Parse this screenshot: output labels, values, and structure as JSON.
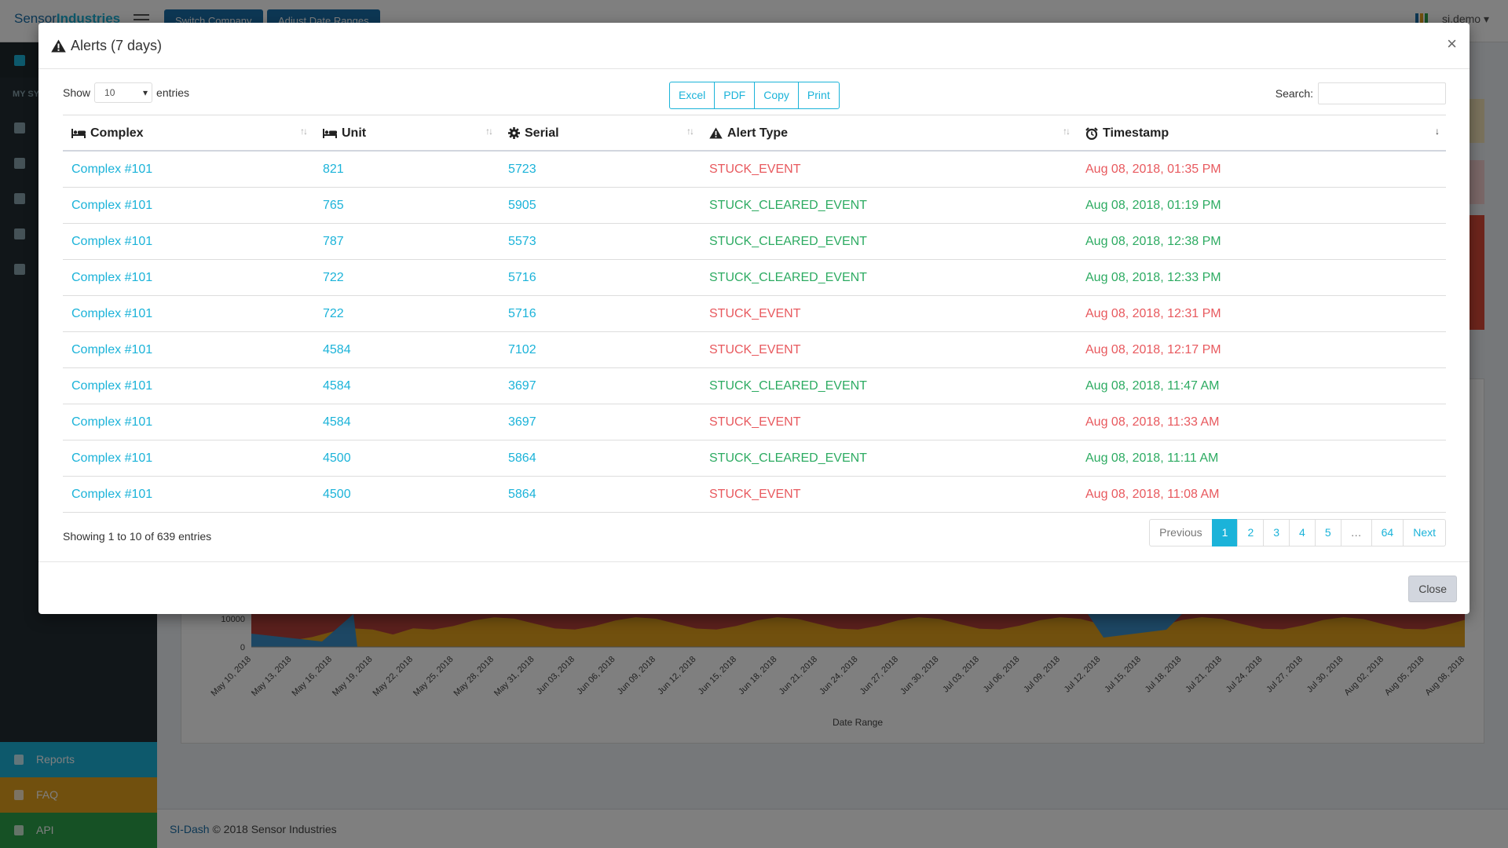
{
  "background": {
    "brand": {
      "logo_prefix": "Sensor",
      "logo_suffix": "Industries"
    },
    "topbar": {
      "switch_company": "Switch Company",
      "adjust_date_range": "Adjust Date Ranges",
      "user": "si.demo"
    },
    "sidebar": {
      "section_label": "MY SY",
      "bottom_items": [
        {
          "label": "Reports",
          "color": "#1bb3d9"
        },
        {
          "label": "FAQ",
          "color": "#e2a11d"
        },
        {
          "label": "API",
          "color": "#2da24a"
        }
      ]
    },
    "chart": {
      "xlabel": "Date Range",
      "y_ticks": [
        "10000",
        "0"
      ],
      "x_ticks": [
        "May 10, 2018",
        "May 13, 2018",
        "May 16, 2018",
        "May 19, 2018",
        "May 22, 2018",
        "May 25, 2018",
        "May 28, 2018",
        "May 31, 2018",
        "Jun 03, 2018",
        "Jun 06, 2018",
        "Jun 09, 2018",
        "Jun 12, 2018",
        "Jun 15, 2018",
        "Jun 18, 2018",
        "Jun 21, 2018",
        "Jun 24, 2018",
        "Jun 27, 2018",
        "Jun 30, 2018",
        "Jul 03, 2018",
        "Jul 06, 2018",
        "Jul 09, 2018",
        "Jul 12, 2018",
        "Jul 15, 2018",
        "Jul 18, 2018",
        "Jul 21, 2018",
        "Jul 24, 2018",
        "Jul 27, 2018",
        "Jul 30, 2018",
        "Aug 02, 2018",
        "Aug 05, 2018",
        "Aug 08, 2018"
      ]
    },
    "footer": {
      "brand": "SI-Dash",
      "text": " © 2018 Sensor Industries"
    }
  },
  "modal": {
    "title": "Alerts (7 days)",
    "close_x": "×",
    "length": {
      "show": "Show",
      "value": "10",
      "entries": "entries"
    },
    "buttons": [
      "Excel",
      "PDF",
      "Copy",
      "Print"
    ],
    "search": {
      "label": "Search:",
      "value": ""
    },
    "columns": [
      {
        "label": "Complex",
        "icon": "bed-icon"
      },
      {
        "label": "Unit",
        "icon": "bed-icon"
      },
      {
        "label": "Serial",
        "icon": "gear-icon"
      },
      {
        "label": "Alert Type",
        "icon": "warning-icon"
      },
      {
        "label": "Timestamp",
        "icon": "alarm-clock-icon"
      }
    ],
    "rows": [
      {
        "complex": "Complex #101",
        "unit": "821",
        "serial": "5723",
        "type": "STUCK_EVENT",
        "timestamp": "Aug 08, 2018, 01:35 PM",
        "status": "red"
      },
      {
        "complex": "Complex #101",
        "unit": "765",
        "serial": "5905",
        "type": "STUCK_CLEARED_EVENT",
        "timestamp": "Aug 08, 2018, 01:19 PM",
        "status": "green"
      },
      {
        "complex": "Complex #101",
        "unit": "787",
        "serial": "5573",
        "type": "STUCK_CLEARED_EVENT",
        "timestamp": "Aug 08, 2018, 12:38 PM",
        "status": "green"
      },
      {
        "complex": "Complex #101",
        "unit": "722",
        "serial": "5716",
        "type": "STUCK_CLEARED_EVENT",
        "timestamp": "Aug 08, 2018, 12:33 PM",
        "status": "green"
      },
      {
        "complex": "Complex #101",
        "unit": "722",
        "serial": "5716",
        "type": "STUCK_EVENT",
        "timestamp": "Aug 08, 2018, 12:31 PM",
        "status": "red"
      },
      {
        "complex": "Complex #101",
        "unit": "4584",
        "serial": "7102",
        "type": "STUCK_EVENT",
        "timestamp": "Aug 08, 2018, 12:17 PM",
        "status": "red"
      },
      {
        "complex": "Complex #101",
        "unit": "4584",
        "serial": "3697",
        "type": "STUCK_CLEARED_EVENT",
        "timestamp": "Aug 08, 2018, 11:47 AM",
        "status": "green"
      },
      {
        "complex": "Complex #101",
        "unit": "4584",
        "serial": "3697",
        "type": "STUCK_EVENT",
        "timestamp": "Aug 08, 2018, 11:33 AM",
        "status": "red"
      },
      {
        "complex": "Complex #101",
        "unit": "4500",
        "serial": "5864",
        "type": "STUCK_CLEARED_EVENT",
        "timestamp": "Aug 08, 2018, 11:11 AM",
        "status": "green"
      },
      {
        "complex": "Complex #101",
        "unit": "4500",
        "serial": "5864",
        "type": "STUCK_EVENT",
        "timestamp": "Aug 08, 2018, 11:08 AM",
        "status": "red"
      }
    ],
    "info": "Showing 1 to 10 of 639 entries",
    "pagination": [
      "Previous",
      "1",
      "2",
      "3",
      "4",
      "5",
      "…",
      "64",
      "Next"
    ],
    "pagination_active": "1",
    "close_button": "Close",
    "colors": {
      "link": "#1bb3d9",
      "red": "#e8595e",
      "green": "#2dab62"
    }
  }
}
